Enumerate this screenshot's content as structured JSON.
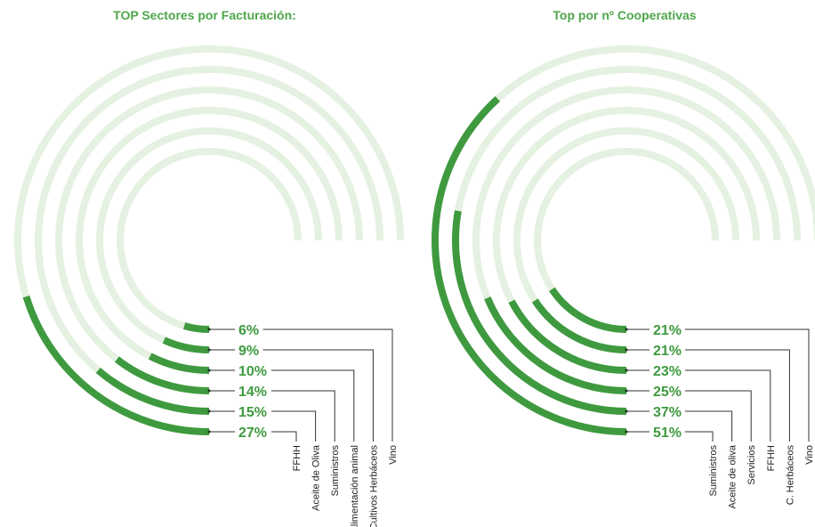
{
  "colors": {
    "accent": "#3f9a3f",
    "track": "#e5f1e1",
    "title": "#4ea64a",
    "leader": "#333333"
  },
  "chart_data": [
    {
      "type": "radial-bar",
      "title": "TOP Sectores por Facturación:",
      "series": [
        {
          "name": "Vino",
          "value": 6,
          "label": "6%"
        },
        {
          "name": "Cultivos Herbáceos",
          "value": 9,
          "label": "9%"
        },
        {
          "name": "Alimentación animal",
          "value": 10,
          "label": "10%"
        },
        {
          "name": "Suministros",
          "value": 14,
          "label": "14%"
        },
        {
          "name": "Aceite de Oliva",
          "value": 15,
          "label": "15%"
        },
        {
          "name": "FFHH",
          "value": 27,
          "label": "27%"
        }
      ]
    },
    {
      "type": "radial-bar",
      "title": "Top por nº Cooperativas",
      "series": [
        {
          "name": "Vino",
          "value": 21,
          "label": "21%"
        },
        {
          "name": "C. Herbáceos",
          "value": 21,
          "label": "21%"
        },
        {
          "name": "FFHH",
          "value": 23,
          "label": "23%"
        },
        {
          "name": "Servicios",
          "value": 25,
          "label": "25%"
        },
        {
          "name": "Aceite de oliva",
          "value": 37,
          "label": "37%"
        },
        {
          "name": "Suministros",
          "value": 51,
          "label": "51%"
        }
      ]
    }
  ]
}
